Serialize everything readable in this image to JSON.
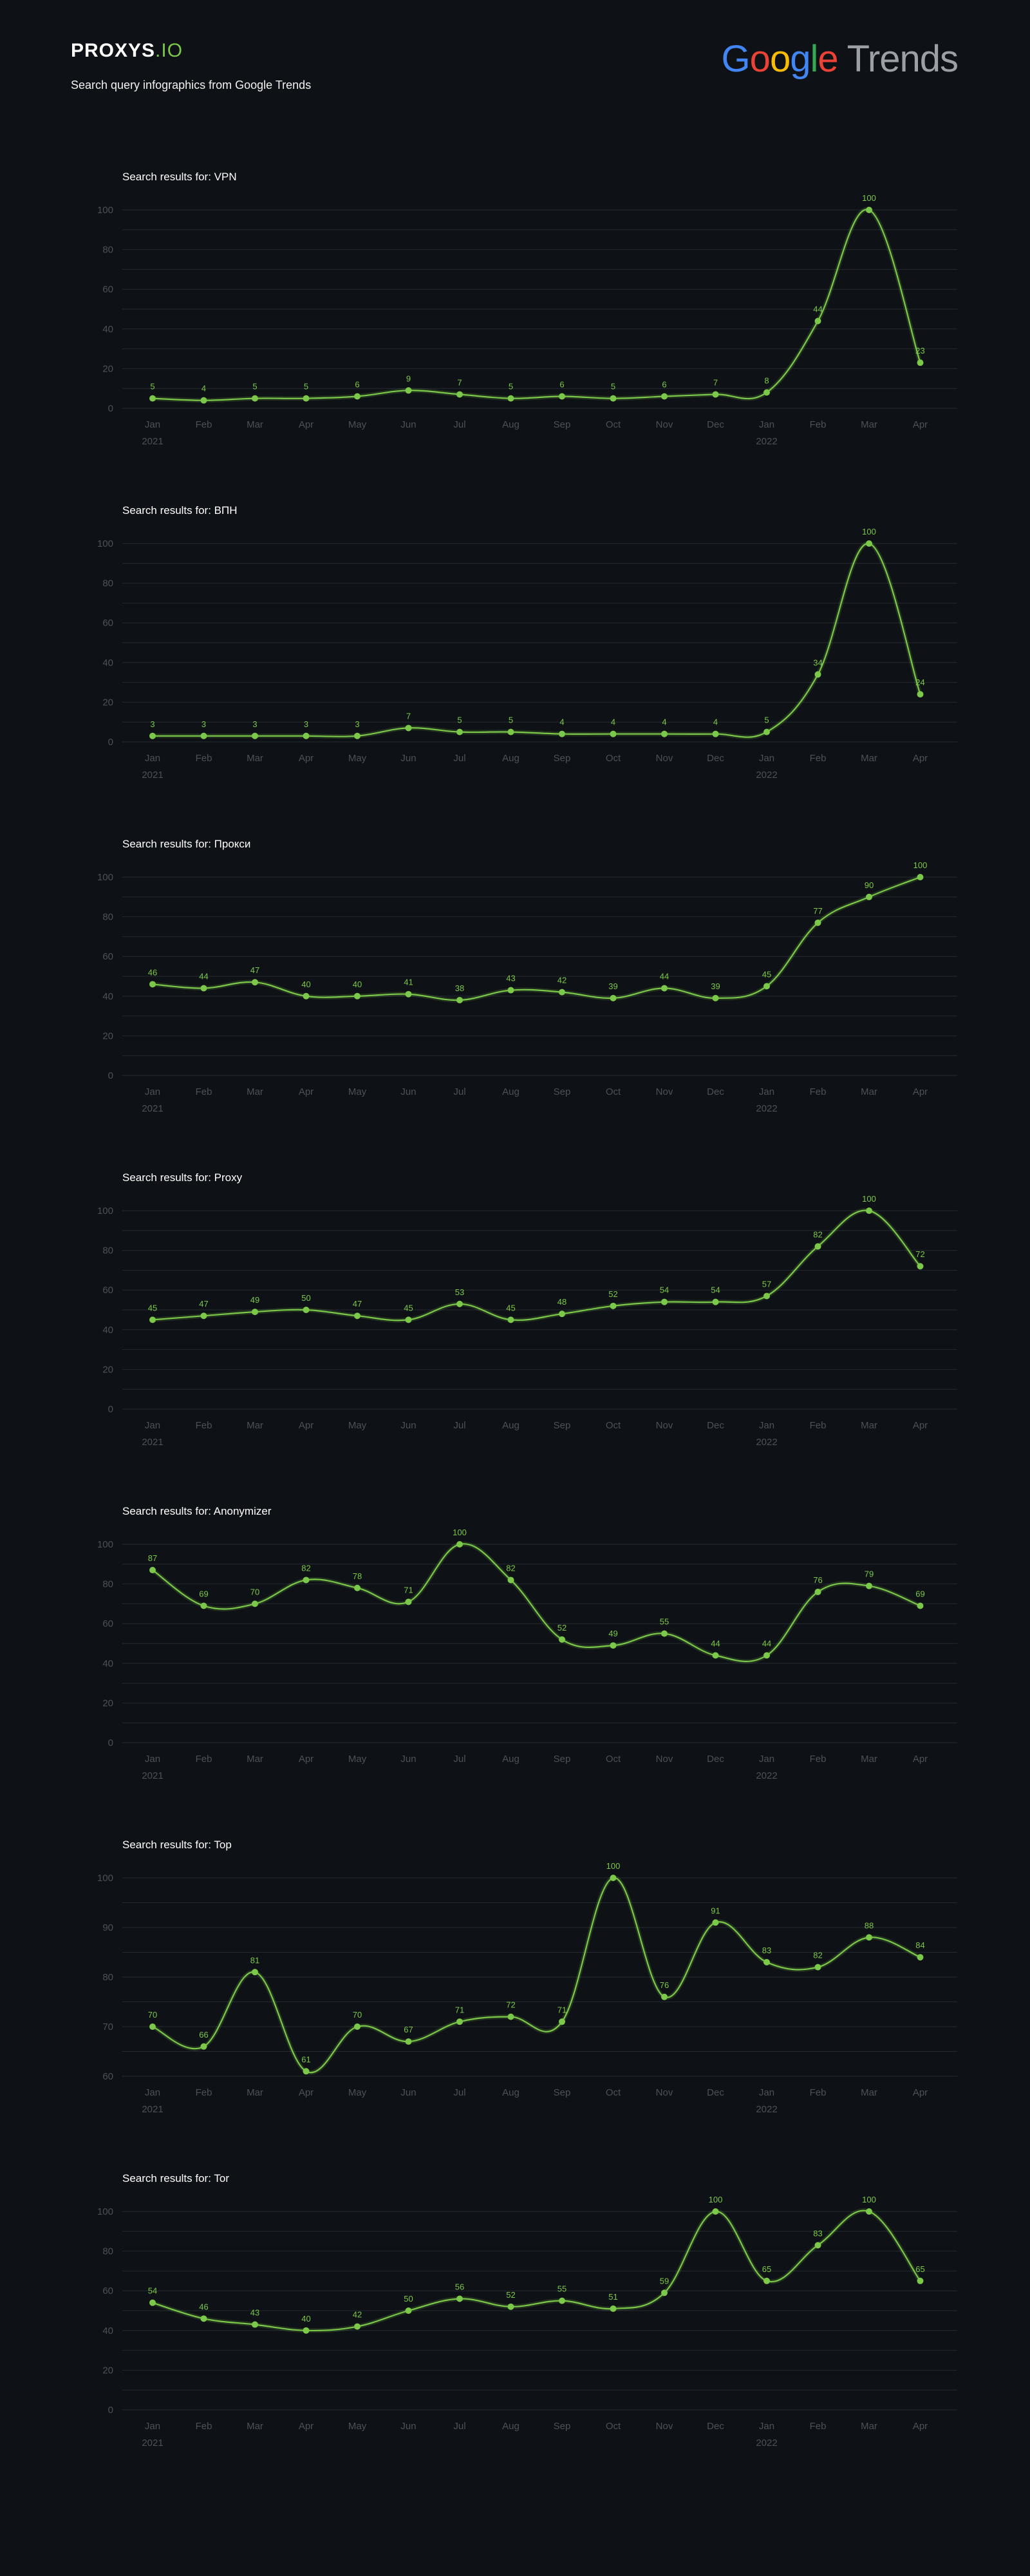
{
  "header": {
    "logo_main": "PROXYS",
    "logo_accent": ".IO",
    "subtitle": "Search query infographics from Google Trends",
    "google_trends": {
      "g1": "G",
      "g2": "o",
      "g3": "o",
      "g4": "g",
      "g5": "l",
      "g6": "e",
      "trends": "Trends"
    }
  },
  "colors": {
    "background": "#0e1115",
    "accent": "#7bc84a",
    "grid": "#242a31",
    "tick": "#4c5259"
  },
  "chart_data": [
    {
      "type": "line",
      "title": "Search results for: VPN",
      "categories": [
        "Jan",
        "Feb",
        "Mar",
        "Apr",
        "May",
        "Jun",
        "Jul",
        "Aug",
        "Sep",
        "Oct",
        "Nov",
        "Dec",
        "Jan",
        "Feb",
        "Mar",
        "Apr"
      ],
      "year_labels": [
        {
          "index": 0,
          "label": "2021"
        },
        {
          "index": 12,
          "label": "2022"
        }
      ],
      "values": [
        5,
        4,
        5,
        5,
        6,
        9,
        7,
        5,
        6,
        5,
        6,
        7,
        8,
        44,
        100,
        23
      ],
      "yticks": [
        0,
        20,
        40,
        60,
        80,
        100
      ],
      "ylim": [
        0,
        100
      ],
      "grid": true
    },
    {
      "type": "line",
      "title": "Search results for: ВПН",
      "categories": [
        "Jan",
        "Feb",
        "Mar",
        "Apr",
        "May",
        "Jun",
        "Jul",
        "Aug",
        "Sep",
        "Oct",
        "Nov",
        "Dec",
        "Jan",
        "Feb",
        "Mar",
        "Apr"
      ],
      "year_labels": [
        {
          "index": 0,
          "label": "2021"
        },
        {
          "index": 12,
          "label": "2022"
        }
      ],
      "values": [
        3,
        3,
        3,
        3,
        3,
        7,
        5,
        5,
        4,
        4,
        4,
        4,
        5,
        34,
        100,
        24
      ],
      "yticks": [
        0,
        20,
        40,
        60,
        80,
        100
      ],
      "ylim": [
        0,
        100
      ],
      "grid": true
    },
    {
      "type": "line",
      "title": "Search results for: Прокси",
      "categories": [
        "Jan",
        "Feb",
        "Mar",
        "Apr",
        "May",
        "Jun",
        "Jul",
        "Aug",
        "Sep",
        "Oct",
        "Nov",
        "Dec",
        "Jan",
        "Feb",
        "Mar",
        "Apr"
      ],
      "year_labels": [
        {
          "index": 0,
          "label": "2021"
        },
        {
          "index": 12,
          "label": "2022"
        }
      ],
      "values": [
        46,
        44,
        47,
        40,
        40,
        41,
        38,
        43,
        42,
        39,
        44,
        39,
        45,
        77,
        90,
        100
      ],
      "yticks": [
        0,
        20,
        40,
        60,
        80,
        100
      ],
      "ylim": [
        0,
        100
      ],
      "grid": true
    },
    {
      "type": "line",
      "title": "Search results for: Proxy",
      "categories": [
        "Jan",
        "Feb",
        "Mar",
        "Apr",
        "May",
        "Jun",
        "Jul",
        "Aug",
        "Sep",
        "Oct",
        "Nov",
        "Dec",
        "Jan",
        "Feb",
        "Mar",
        "Apr"
      ],
      "year_labels": [
        {
          "index": 0,
          "label": "2021"
        },
        {
          "index": 12,
          "label": "2022"
        }
      ],
      "values": [
        45,
        47,
        49,
        50,
        47,
        45,
        53,
        45,
        48,
        52,
        54,
        54,
        57,
        82,
        100,
        72
      ],
      "yticks": [
        0,
        20,
        40,
        60,
        80,
        100
      ],
      "ylim": [
        0,
        100
      ],
      "grid": true
    },
    {
      "type": "line",
      "title": "Search results for: Anonymizer",
      "categories": [
        "Jan",
        "Feb",
        "Mar",
        "Apr",
        "May",
        "Jun",
        "Jul",
        "Aug",
        "Sep",
        "Oct",
        "Nov",
        "Dec",
        "Jan",
        "Feb",
        "Mar",
        "Apr"
      ],
      "year_labels": [
        {
          "index": 0,
          "label": "2021"
        },
        {
          "index": 12,
          "label": "2022"
        }
      ],
      "values": [
        87,
        69,
        70,
        82,
        78,
        71,
        100,
        82,
        52,
        49,
        55,
        44,
        44,
        76,
        79,
        69
      ],
      "yticks": [
        0,
        20,
        40,
        60,
        80,
        100
      ],
      "ylim": [
        0,
        100
      ],
      "grid": true
    },
    {
      "type": "line",
      "title": "Search results for: Top",
      "categories": [
        "Jan",
        "Feb",
        "Mar",
        "Apr",
        "May",
        "Jun",
        "Jul",
        "Aug",
        "Sep",
        "Oct",
        "Nov",
        "Dec",
        "Jan",
        "Feb",
        "Mar",
        "Apr"
      ],
      "year_labels": [
        {
          "index": 0,
          "label": "2021"
        },
        {
          "index": 12,
          "label": "2022"
        }
      ],
      "values": [
        70,
        66,
        81,
        61,
        70,
        67,
        71,
        72,
        71,
        100,
        76,
        91,
        83,
        82,
        88,
        84
      ],
      "yticks": [
        60,
        70,
        80,
        90,
        100
      ],
      "ylim": [
        60,
        100
      ],
      "grid": true
    },
    {
      "type": "line",
      "title": "Search results for: Tor",
      "categories": [
        "Jan",
        "Feb",
        "Mar",
        "Apr",
        "May",
        "Jun",
        "Jul",
        "Aug",
        "Sep",
        "Oct",
        "Nov",
        "Dec",
        "Jan",
        "Feb",
        "Mar",
        "Apr"
      ],
      "year_labels": [
        {
          "index": 0,
          "label": "2021"
        },
        {
          "index": 12,
          "label": "2022"
        }
      ],
      "values": [
        54,
        46,
        43,
        40,
        42,
        50,
        56,
        52,
        55,
        51,
        59,
        100,
        65,
        83,
        100,
        65
      ],
      "yticks": [
        0,
        20,
        40,
        60,
        80,
        100
      ],
      "ylim": [
        0,
        100
      ],
      "grid": true
    }
  ]
}
